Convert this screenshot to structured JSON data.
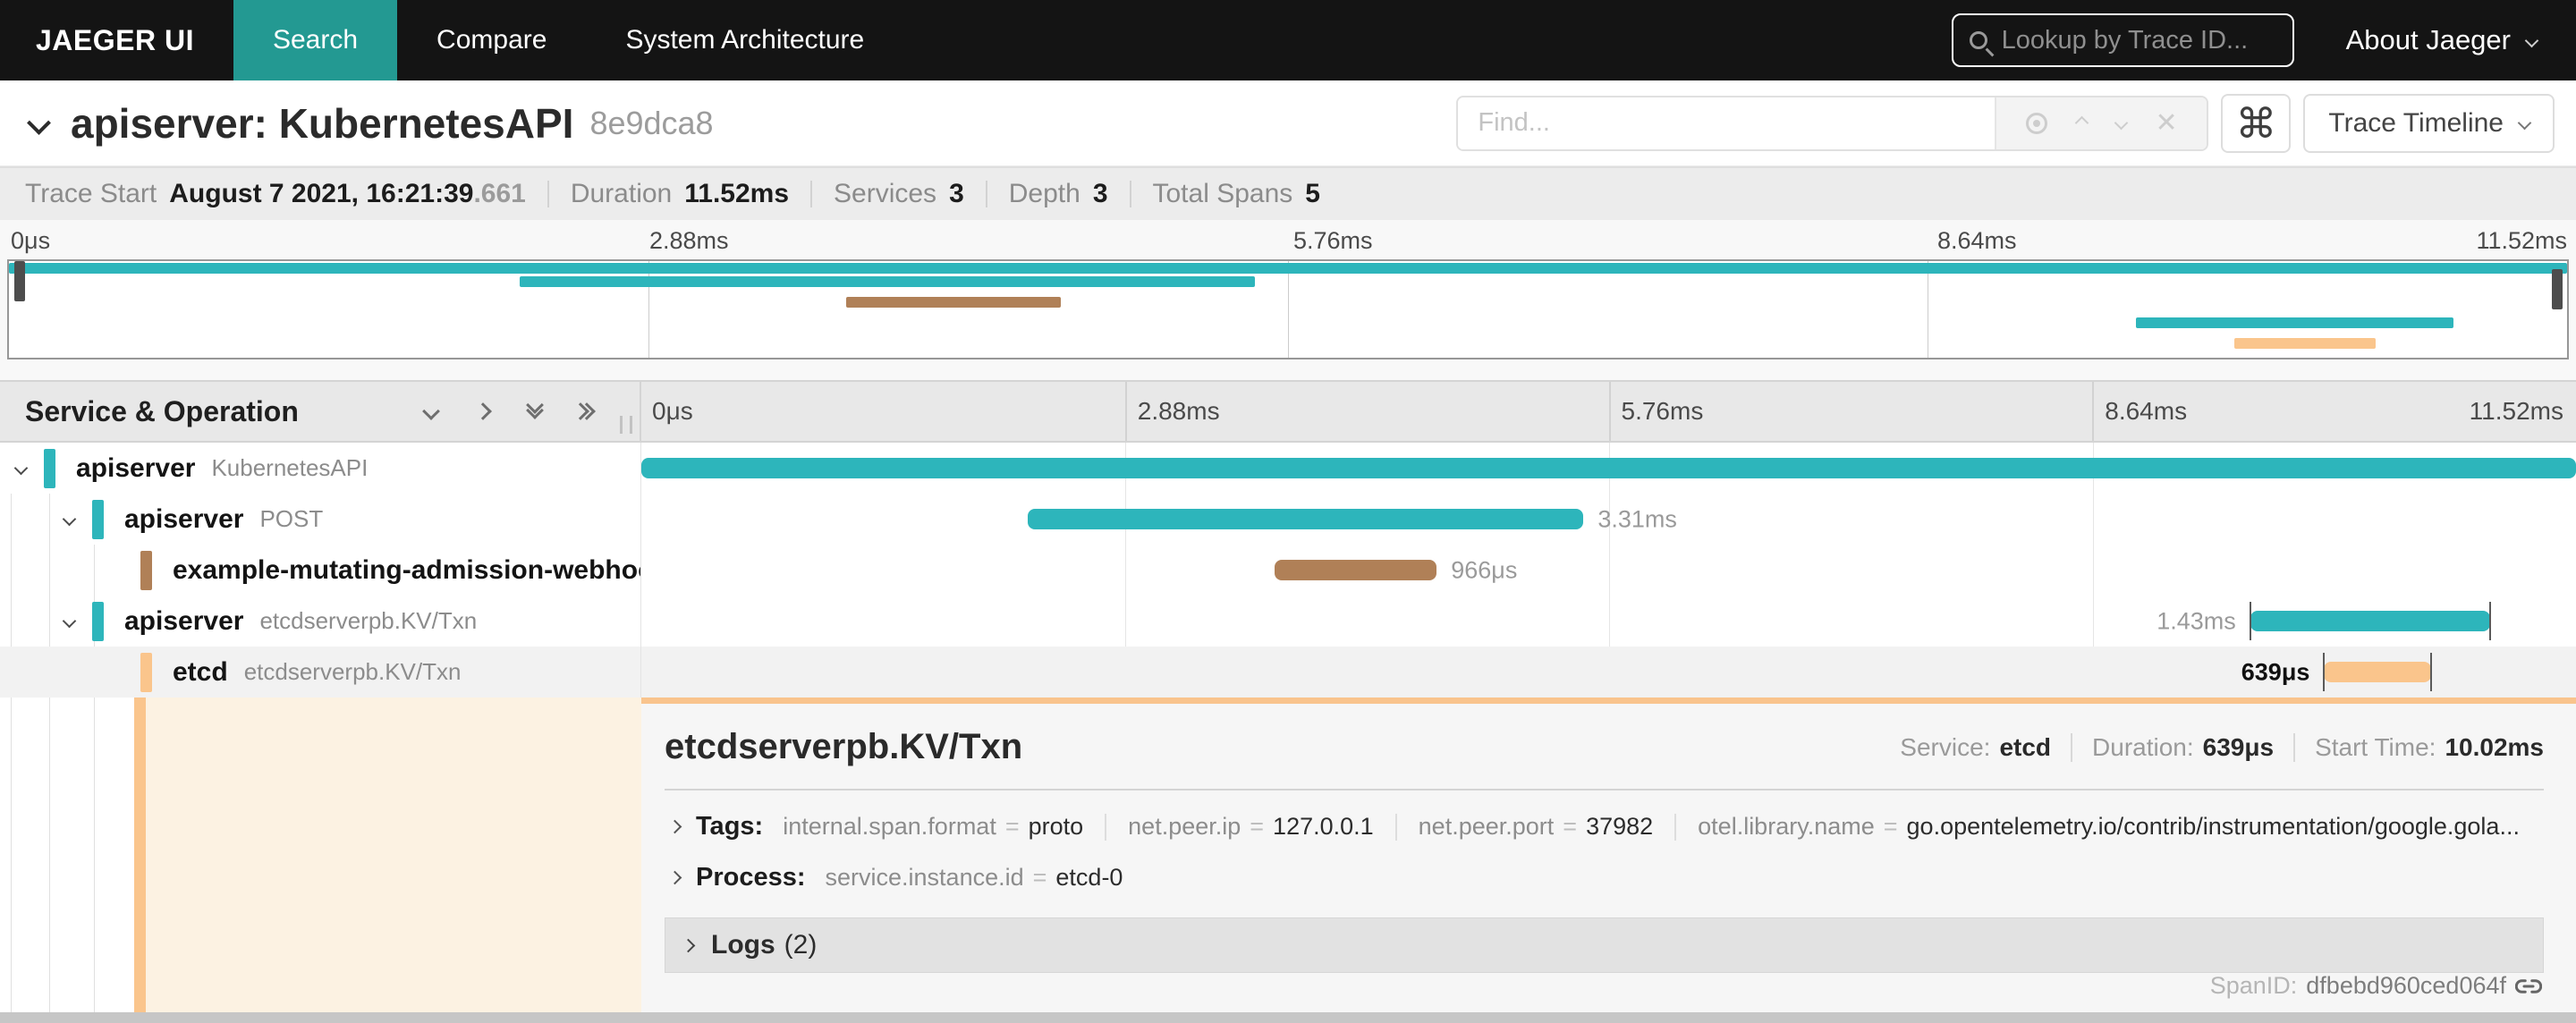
{
  "colors": {
    "accent_teal": "#239992",
    "span_teal": "#2db5bb",
    "span_brown": "#b08057",
    "span_orange": "#fac58c",
    "detail_border_orange": "#f9c48d",
    "selected_peach": "#fcf2e2"
  },
  "nav": {
    "brand": "JAEGER UI",
    "tabs": [
      {
        "label": "Search",
        "active": true
      },
      {
        "label": "Compare",
        "active": false
      },
      {
        "label": "System Architecture",
        "active": false
      }
    ],
    "lookup_placeholder": "Lookup by Trace ID...",
    "about_label": "About Jaeger"
  },
  "trace_header": {
    "title": "apiserver: KubernetesAPI",
    "trace_id_short": "8e9dca8",
    "find_placeholder": "Find...",
    "view_selector": "Trace Timeline"
  },
  "summary": {
    "items": [
      {
        "label": "Trace Start",
        "value": "August 7 2021, 16:21:39",
        "suffix": ".661"
      },
      {
        "label": "Duration",
        "value": "11.52ms"
      },
      {
        "label": "Services",
        "value": "3"
      },
      {
        "label": "Depth",
        "value": "3"
      },
      {
        "label": "Total Spans",
        "value": "5"
      }
    ]
  },
  "timeline": {
    "column_header": "Service & Operation",
    "ticks": [
      "0μs",
      "2.88ms",
      "5.76ms",
      "8.64ms",
      "11.52ms"
    ],
    "total_ms": 11.52
  },
  "spans": [
    {
      "service": "apiserver",
      "operation": "KubernetesAPI",
      "depth": 0,
      "start_ms": 0,
      "duration_ms": 11.52,
      "color": "teal",
      "expander": true,
      "bar_label": "",
      "label_side": "none",
      "end_ticks": false,
      "selected": false
    },
    {
      "service": "apiserver",
      "operation": "POST",
      "depth": 1,
      "start_ms": 2.3,
      "duration_ms": 3.31,
      "color": "teal",
      "expander": true,
      "bar_label": "3.31ms",
      "label_side": "right",
      "end_ticks": false,
      "selected": false
    },
    {
      "service": "example-mutating-admission-webhook...",
      "operation": "",
      "depth": 2,
      "start_ms": 3.77,
      "duration_ms": 0.966,
      "color": "brown",
      "expander": false,
      "bar_label": "966μs",
      "label_side": "right",
      "end_ticks": false,
      "selected": false
    },
    {
      "service": "apiserver",
      "operation": "etcdserverpb.KV/Txn",
      "depth": 1,
      "start_ms": 9.58,
      "duration_ms": 1.43,
      "color": "teal",
      "expander": true,
      "bar_label": "1.43ms",
      "label_side": "left",
      "end_ticks": true,
      "selected": false
    },
    {
      "service": "etcd",
      "operation": "etcdserverpb.KV/Txn",
      "depth": 2,
      "start_ms": 10.02,
      "duration_ms": 0.639,
      "color": "orange",
      "expander": false,
      "bar_label": "639μs",
      "label_side": "left",
      "end_ticks": true,
      "selected": true,
      "label_dark": true
    }
  ],
  "detail": {
    "title": "etcdserverpb.KV/Txn",
    "service_label": "Service:",
    "service": "etcd",
    "duration_label": "Duration:",
    "duration": "639μs",
    "start_label": "Start Time:",
    "start_time": "10.02ms",
    "tags_label": "Tags:",
    "tags": [
      {
        "key": "internal.span.format",
        "value": "proto"
      },
      {
        "key": "net.peer.ip",
        "value": "127.0.0.1"
      },
      {
        "key": "net.peer.port",
        "value": "37982"
      },
      {
        "key": "otel.library.name",
        "value": "go.opentelemetry.io/contrib/instrumentation/google.gola..."
      }
    ],
    "process_label": "Process:",
    "process": [
      {
        "key": "service.instance.id",
        "value": "etcd-0"
      }
    ],
    "logs_label": "Logs",
    "logs_count": "(2)",
    "span_id_label": "SpanID:",
    "span_id": "dfbebd960ced064f"
  }
}
